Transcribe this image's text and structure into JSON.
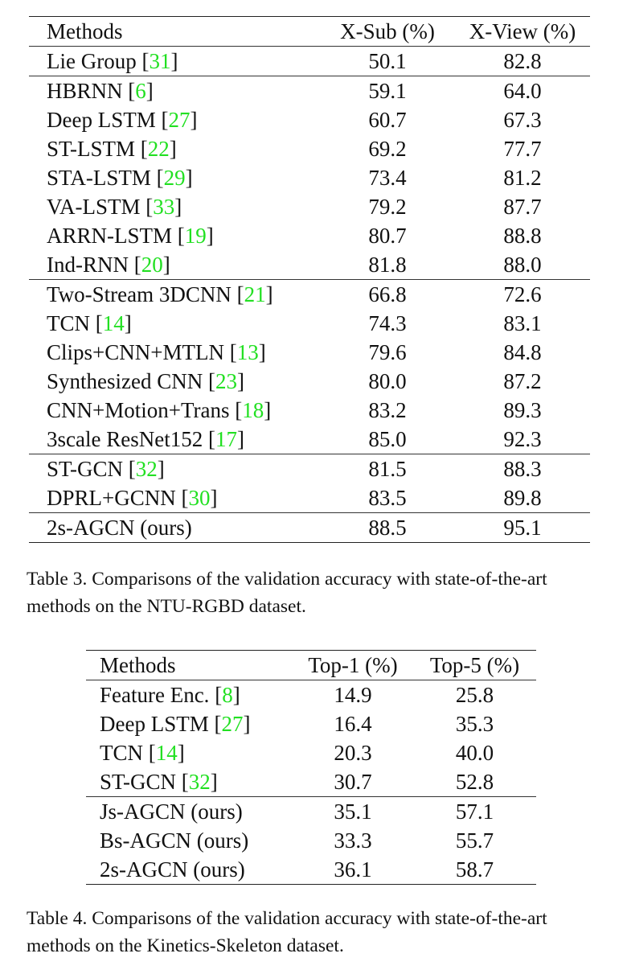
{
  "table3": {
    "headers": [
      "Methods",
      "X-Sub (%)",
      "X-View (%)"
    ],
    "rows": [
      {
        "method": "Lie Group",
        "cite": "31",
        "xsub": "50.1",
        "xview": "82.8"
      },
      {
        "method": "HBRNN",
        "cite": "6",
        "xsub": "59.1",
        "xview": "64.0"
      },
      {
        "method": "Deep LSTM",
        "cite": "27",
        "xsub": "60.7",
        "xview": "67.3"
      },
      {
        "method": "ST-LSTM",
        "cite": "22",
        "xsub": "69.2",
        "xview": "77.7"
      },
      {
        "method": "STA-LSTM",
        "cite": "29",
        "xsub": "73.4",
        "xview": "81.2"
      },
      {
        "method": "VA-LSTM",
        "cite": "33",
        "xsub": "79.2",
        "xview": "87.7"
      },
      {
        "method": "ARRN-LSTM",
        "cite": "19",
        "xsub": "80.7",
        "xview": "88.8"
      },
      {
        "method": "Ind-RNN",
        "cite": "20",
        "xsub": "81.8",
        "xview": "88.0"
      },
      {
        "method": "Two-Stream 3DCNN",
        "cite": "21",
        "xsub": "66.8",
        "xview": "72.6"
      },
      {
        "method": "TCN",
        "cite": "14",
        "xsub": "74.3",
        "xview": "83.1"
      },
      {
        "method": "Clips+CNN+MTLN",
        "cite": "13",
        "xsub": "79.6",
        "xview": "84.8"
      },
      {
        "method": "Synthesized CNN",
        "cite": "23",
        "xsub": "80.0",
        "xview": "87.2"
      },
      {
        "method": "CNN+Motion+Trans",
        "cite": "18",
        "xsub": "83.2",
        "xview": "89.3"
      },
      {
        "method": "3scale ResNet152",
        "cite": "17",
        "xsub": "85.0",
        "xview": "92.3"
      },
      {
        "method": "ST-GCN",
        "cite": "32",
        "xsub": "81.5",
        "xview": "88.3"
      },
      {
        "method": "DPRL+GCNN",
        "cite": "30",
        "xsub": "83.5",
        "xview": "89.8"
      },
      {
        "method": "2s-AGCN (ours)",
        "cite": null,
        "xsub": "88.5",
        "xview": "95.1"
      }
    ],
    "caption": "Table 3. Comparisons of the validation accuracy with state-of-the-art methods on the NTU-RGBD dataset."
  },
  "table4": {
    "headers": [
      "Methods",
      "Top-1 (%)",
      "Top-5 (%)"
    ],
    "rows": [
      {
        "method": "Feature Enc.",
        "cite": "8",
        "top1": "14.9",
        "top5": "25.8"
      },
      {
        "method": "Deep LSTM",
        "cite": "27",
        "top1": "16.4",
        "top5": "35.3"
      },
      {
        "method": "TCN",
        "cite": "14",
        "top1": "20.3",
        "top5": "40.0"
      },
      {
        "method": "ST-GCN",
        "cite": "32",
        "top1": "30.7",
        "top5": "52.8"
      },
      {
        "method": "Js-AGCN (ours)",
        "cite": null,
        "top1": "35.1",
        "top5": "57.1"
      },
      {
        "method": "Bs-AGCN (ours)",
        "cite": null,
        "top1": "33.3",
        "top5": "55.7"
      },
      {
        "method": "2s-AGCN (ours)",
        "cite": null,
        "top1": "36.1",
        "top5": "58.7"
      }
    ],
    "caption": "Table 4. Comparisons of the validation accuracy with state-of-the-art methods on the Kinetics-Skeleton dataset."
  },
  "colors": {
    "citation": "#22e022",
    "text": "#111111"
  }
}
